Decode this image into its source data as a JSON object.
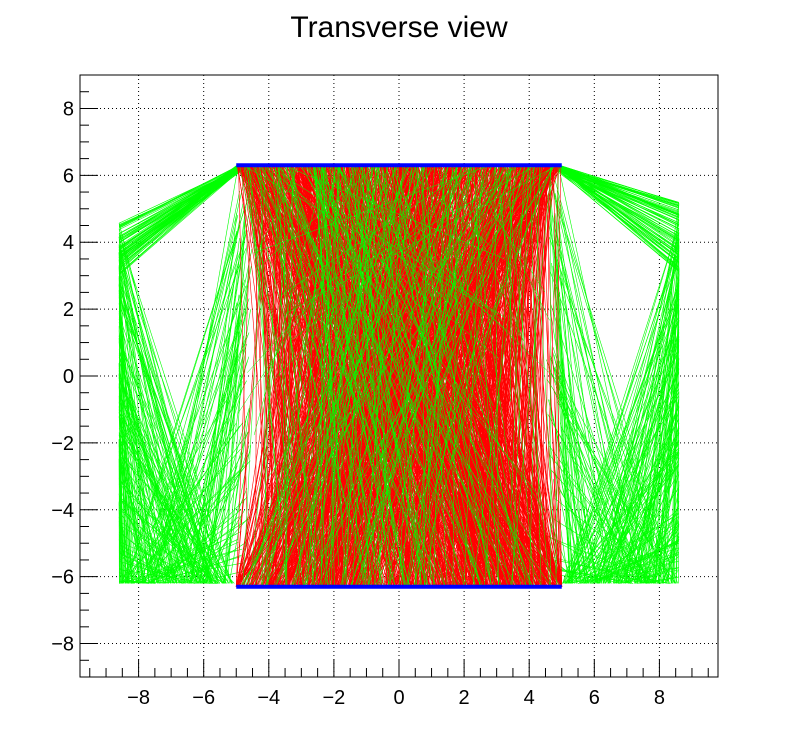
{
  "chart_data": {
    "type": "line",
    "title": "Transverse view",
    "xlabel": "",
    "ylabel": "",
    "xlim": [
      -9.8,
      9.8
    ],
    "ylim": [
      -9,
      9
    ],
    "x_ticks": [
      -8,
      -6,
      -4,
      -2,
      0,
      2,
      4,
      6,
      8
    ],
    "y_ticks": [
      -8,
      -6,
      -4,
      -2,
      0,
      2,
      4,
      6,
      8
    ],
    "x_minor_step": 0.5,
    "y_minor_step": 0.5,
    "grid": true,
    "colors": {
      "detector": "#0000ff",
      "track_inside": "#ff0000",
      "track_outside": "#00ff00"
    },
    "detectors": [
      {
        "name": "top-plate",
        "x": [
          -5,
          5
        ],
        "y": [
          6.3,
          6.3
        ]
      },
      {
        "name": "bottom-plate",
        "x": [
          -5,
          5
        ],
        "y": [
          -6.3,
          -6.3
        ]
      }
    ],
    "track_bundles": [
      {
        "color": "track_outside",
        "x_range": [
          -8.6,
          -5
        ],
        "y_top": [
          3.0,
          4.6
        ],
        "y_bottom": -6.2
      },
      {
        "color": "track_outside",
        "x_range": [
          5,
          8.6
        ],
        "y_top": [
          3.0,
          5.2
        ],
        "y_bottom": -6.2
      },
      {
        "color": "track_inside",
        "x_range": [
          -5,
          5
        ],
        "y_top": 6.3,
        "y_bottom": -6.3
      },
      {
        "color": "track_outside",
        "x_range": [
          -5,
          5
        ],
        "y_top": 6.3,
        "y_bottom": -6.3
      }
    ]
  }
}
